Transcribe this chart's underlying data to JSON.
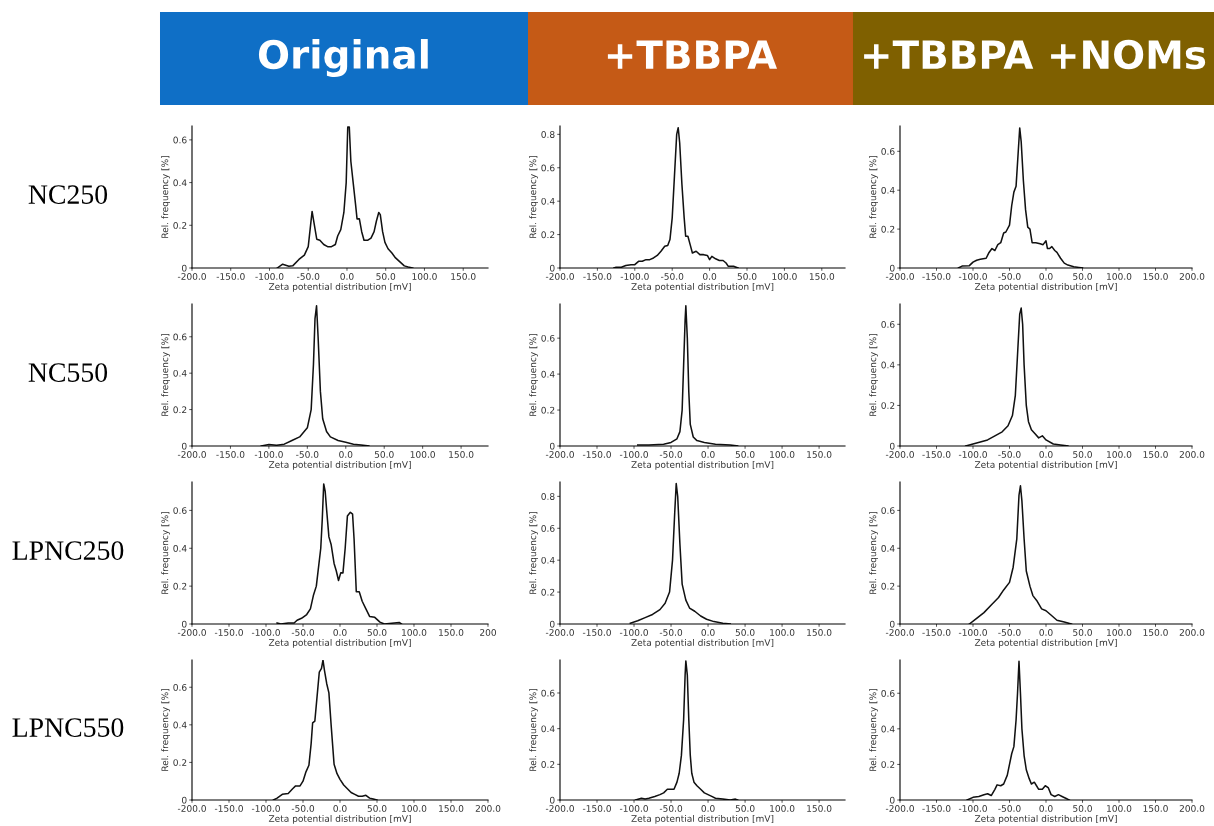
{
  "chart_data": [
    {
      "type": "line",
      "title": "Original",
      "annotations": [
        "NC250"
      ],
      "xlabel": "Zeta potential distribution [mV]",
      "ylabel": "Rel. frequency [%]",
      "xlim": [
        -200,
        182
      ],
      "ylim": [
        0,
        0.665
      ],
      "xticks": [
        {
          "value": -200,
          "label": "-200.0"
        },
        {
          "value": -150,
          "label": "-150.0"
        },
        {
          "value": -100,
          "label": "-100.0"
        },
        {
          "value": -50,
          "label": "-50.0"
        },
        {
          "value": 0,
          "label": "0.0"
        },
        {
          "value": 50,
          "label": "50.0"
        },
        {
          "value": 100,
          "label": "100.0"
        },
        {
          "value": 150,
          "label": "150.0"
        }
      ],
      "yticks": [
        0,
        0.2,
        0.4,
        0.6
      ],
      "color": "#111111",
      "x": [
        -90,
        -83,
        -75,
        -70,
        -62,
        -55,
        -50,
        -47,
        -45,
        -42,
        -39,
        -35,
        -30,
        -25,
        -20,
        -15,
        -12,
        -8,
        -4,
        -1,
        1,
        3,
        5,
        8,
        11,
        13,
        16,
        19,
        22,
        27,
        31,
        35,
        38,
        41,
        43,
        46,
        49,
        53,
        58,
        62,
        68,
        74,
        79,
        85
      ],
      "values": [
        0,
        0.018,
        0.008,
        0.01,
        0.04,
        0.06,
        0.1,
        0.2,
        0.265,
        0.2,
        0.135,
        0.13,
        0.11,
        0.1,
        0.1,
        0.11,
        0.15,
        0.18,
        0.26,
        0.4,
        0.66,
        0.66,
        0.5,
        0.4,
        0.3,
        0.23,
        0.23,
        0.17,
        0.13,
        0.13,
        0.14,
        0.17,
        0.22,
        0.26,
        0.25,
        0.17,
        0.12,
        0.09,
        0.07,
        0.05,
        0.03,
        0.01,
        0.005,
        0
      ]
    },
    {
      "type": "line",
      "title": "+TBBPA",
      "xlabel": "Zeta potential distribution [mV]",
      "ylabel": "Rel. frequency [%]",
      "xlim": [
        -200,
        181
      ],
      "ylim": [
        0,
        0.85
      ],
      "xticks": [
        {
          "value": -200,
          "label": "-200.0"
        },
        {
          "value": -150,
          "label": "-150.0"
        },
        {
          "value": -100,
          "label": "-100.0"
        },
        {
          "value": -50,
          "label": "-50.0"
        },
        {
          "value": 0,
          "label": "0.0"
        },
        {
          "value": 50,
          "label": "50.0"
        },
        {
          "value": 100,
          "label": "100.0"
        },
        {
          "value": 150,
          "label": "150.0"
        }
      ],
      "yticks": [
        0,
        0.2,
        0.4,
        0.6,
        0.8
      ],
      "color": "#111111",
      "x": [
        -128,
        -125,
        -118,
        -112,
        -105,
        -100,
        -95,
        -90,
        -85,
        -80,
        -75,
        -70,
        -65,
        -60,
        -56,
        -53,
        -50,
        -47,
        -44,
        -42,
        -40,
        -37,
        -34,
        -32,
        -29,
        -26,
        -23,
        -18,
        -13,
        -8,
        -3,
        0,
        3,
        8,
        13,
        18,
        22,
        25,
        32,
        38
      ],
      "values": [
        0,
        0.005,
        0.005,
        0.015,
        0.02,
        0.02,
        0.04,
        0.04,
        0.05,
        0.05,
        0.06,
        0.075,
        0.1,
        0.13,
        0.135,
        0.17,
        0.3,
        0.55,
        0.8,
        0.84,
        0.75,
        0.5,
        0.3,
        0.19,
        0.19,
        0.14,
        0.09,
        0.1,
        0.08,
        0.08,
        0.075,
        0.05,
        0.07,
        0.055,
        0.045,
        0.045,
        0.03,
        0.01,
        0.01,
        0
      ]
    },
    {
      "type": "line",
      "title": "+TBBPA +NOMs",
      "xlabel": "Zeta potential distribution [mV]",
      "ylabel": "Rel. frequency [%]",
      "xlim": [
        -200,
        200
      ],
      "ylim": [
        0,
        0.73
      ],
      "xticks": [
        {
          "value": -200,
          "label": "-200.0"
        },
        {
          "value": -150,
          "label": "-150.0"
        },
        {
          "value": -100,
          "label": "-100.0"
        },
        {
          "value": -50,
          "label": "-50.0"
        },
        {
          "value": 0,
          "label": "0.0"
        },
        {
          "value": 50,
          "label": "50.0"
        },
        {
          "value": 100,
          "label": "100.0"
        },
        {
          "value": 150,
          "label": "150.0"
        },
        {
          "value": 200,
          "label": "200.0"
        }
      ],
      "yticks": [
        0,
        0.2,
        0.4,
        0.6
      ],
      "color": "#111111",
      "x": [
        -120,
        -115,
        -105,
        -100,
        -95,
        -90,
        -82,
        -78,
        -74,
        -70,
        -66,
        -62,
        -58,
        -55,
        -50,
        -47,
        -44,
        -41,
        -38,
        -36,
        -34,
        -31,
        -28,
        -25,
        -22,
        -19,
        -14,
        -8,
        -4,
        0,
        2,
        5,
        8,
        12,
        15,
        20,
        25,
        30,
        38,
        45,
        50
      ],
      "values": [
        0,
        0.01,
        0.012,
        0.03,
        0.04,
        0.045,
        0.05,
        0.08,
        0.1,
        0.09,
        0.12,
        0.13,
        0.18,
        0.185,
        0.22,
        0.32,
        0.39,
        0.42,
        0.6,
        0.72,
        0.65,
        0.45,
        0.3,
        0.21,
        0.2,
        0.13,
        0.13,
        0.125,
        0.12,
        0.14,
        0.1,
        0.1,
        0.11,
        0.09,
        0.08,
        0.05,
        0.025,
        0.015,
        0.007,
        0.003,
        0
      ]
    },
    {
      "type": "line",
      "annotations": [
        "NC550"
      ],
      "xlabel": "Zeta potential distribution [mV]",
      "ylabel": "Rel. frequency [%]",
      "xlim": [
        -200,
        185
      ],
      "ylim": [
        0,
        0.78
      ],
      "xticks": [
        {
          "value": -200,
          "label": "-200.0"
        },
        {
          "value": -150,
          "label": "-150.0"
        },
        {
          "value": -100,
          "label": "-100.0"
        },
        {
          "value": -50,
          "label": "-50.0"
        },
        {
          "value": 0,
          "label": "0.0"
        },
        {
          "value": 50,
          "label": "50.0"
        },
        {
          "value": 100,
          "label": "100.0"
        },
        {
          "value": 150,
          "label": "150.0"
        }
      ],
      "yticks": [
        0,
        0.2,
        0.4,
        0.6
      ],
      "color": "#111111",
      "x": [
        -110,
        -100,
        -90,
        -80,
        -70,
        -60,
        -50,
        -45,
        -42,
        -40,
        -38,
        -36,
        -33,
        -30,
        -25,
        -20,
        -10,
        0,
        10,
        20,
        30
      ],
      "values": [
        0,
        0.008,
        0.004,
        0.01,
        0.03,
        0.05,
        0.1,
        0.2,
        0.45,
        0.7,
        0.77,
        0.6,
        0.3,
        0.15,
        0.08,
        0.05,
        0.03,
        0.02,
        0.01,
        0.005,
        0
      ]
    },
    {
      "type": "line",
      "xlabel": "Zeta potential distribution [mV]",
      "ylabel": "Rel. frequency [%]",
      "xlim": [
        -200,
        185
      ],
      "ylim": [
        0,
        0.79
      ],
      "xticks": [
        {
          "value": -200,
          "label": "-200.0"
        },
        {
          "value": -150,
          "label": "-150.0"
        },
        {
          "value": -100,
          "label": "-100.0"
        },
        {
          "value": -50,
          "label": "-50.0"
        },
        {
          "value": 0,
          "label": "0.0"
        },
        {
          "value": 50,
          "label": "50.0"
        },
        {
          "value": 100,
          "label": "100.0"
        },
        {
          "value": 150,
          "label": "150.0"
        }
      ],
      "yticks": [
        0,
        0.2,
        0.4,
        0.6
      ],
      "color": "#111111",
      "x": [
        -95,
        -80,
        -60,
        -50,
        -42,
        -38,
        -35,
        -33,
        -31,
        -30,
        -28,
        -26,
        -24,
        -20,
        -15,
        -5,
        10,
        30,
        40
      ],
      "values": [
        0.005,
        0.005,
        0.01,
        0.02,
        0.04,
        0.08,
        0.2,
        0.45,
        0.7,
        0.78,
        0.6,
        0.3,
        0.12,
        0.05,
        0.03,
        0.02,
        0.01,
        0.005,
        0
      ]
    },
    {
      "type": "line",
      "xlabel": "Zeta potential distribution [mV]",
      "ylabel": "Rel. frequency [%]",
      "xlim": [
        -200,
        200
      ],
      "ylim": [
        0,
        0.7
      ],
      "xticks": [
        {
          "value": -200,
          "label": "-200.0"
        },
        {
          "value": -150,
          "label": "-150.0"
        },
        {
          "value": -100,
          "label": "-100.0"
        },
        {
          "value": -50,
          "label": "-50.0"
        },
        {
          "value": 0,
          "label": "0.0"
        },
        {
          "value": 50,
          "label": "50.0"
        },
        {
          "value": 100,
          "label": "100.0"
        },
        {
          "value": 150,
          "label": "150.0"
        },
        {
          "value": 200,
          "label": "200.0"
        }
      ],
      "yticks": [
        0,
        0.2,
        0.4,
        0.6
      ],
      "color": "#111111",
      "x": [
        -110,
        -100,
        -90,
        -80,
        -70,
        -60,
        -52,
        -46,
        -42,
        -39,
        -36,
        -34,
        -32,
        -30,
        -27,
        -24,
        -20,
        -15,
        -10,
        -5,
        0,
        10,
        20,
        30
      ],
      "values": [
        0,
        0.01,
        0.02,
        0.03,
        0.05,
        0.07,
        0.1,
        0.15,
        0.25,
        0.45,
        0.65,
        0.68,
        0.6,
        0.4,
        0.2,
        0.12,
        0.08,
        0.06,
        0.04,
        0.05,
        0.03,
        0.01,
        0.005,
        0
      ]
    },
    {
      "type": "line",
      "annotations": [
        "LPNC250"
      ],
      "xlabel": "Zeta potential distribution [mV]",
      "ylabel": "Rel. frequency [%]",
      "xlim": [
        -200,
        200
      ],
      "ylim": [
        0,
        0.75
      ],
      "xticks": [
        {
          "value": -200,
          "label": "-200.0"
        },
        {
          "value": -150,
          "label": "-150.0"
        },
        {
          "value": -100,
          "label": "-100.0"
        },
        {
          "value": -50,
          "label": "-50.0"
        },
        {
          "value": 0,
          "label": "0.0"
        },
        {
          "value": 50,
          "label": "50.0"
        },
        {
          "value": 100,
          "label": "100.0"
        },
        {
          "value": 150,
          "label": "150.0"
        },
        {
          "value": 200,
          "label": "200"
        }
      ],
      "yticks": [
        0,
        0.2,
        0.4,
        0.6
      ],
      "color": "#111111",
      "x": [
        -85,
        -80,
        -70,
        -62,
        -58,
        -52,
        -45,
        -40,
        -36,
        -32,
        -29,
        -26,
        -24,
        -22,
        -20,
        -18,
        -15,
        -12,
        -8,
        -5,
        -2,
        1,
        4,
        7,
        10,
        14,
        17,
        19,
        22,
        26,
        30,
        35,
        40,
        47,
        54,
        60,
        80,
        83
      ],
      "values": [
        0.005,
        0,
        0.005,
        0.005,
        0.02,
        0.03,
        0.05,
        0.08,
        0.15,
        0.2,
        0.3,
        0.4,
        0.55,
        0.74,
        0.7,
        0.6,
        0.46,
        0.42,
        0.32,
        0.28,
        0.23,
        0.27,
        0.27,
        0.4,
        0.57,
        0.59,
        0.58,
        0.45,
        0.17,
        0.17,
        0.12,
        0.08,
        0.04,
        0.035,
        0.01,
        0,
        0.008,
        0
      ]
    },
    {
      "type": "line",
      "xlabel": "Zeta potential distribution [mV]",
      "ylabel": "Rel. frequency [%]",
      "xlim": [
        -200,
        185
      ],
      "ylim": [
        0,
        0.89
      ],
      "xticks": [
        {
          "value": -200,
          "label": "-200.0"
        },
        {
          "value": -150,
          "label": "-150.0"
        },
        {
          "value": -100,
          "label": "-100.0"
        },
        {
          "value": -50,
          "label": "-50.0"
        },
        {
          "value": 0,
          "label": "0.0"
        },
        {
          "value": 50,
          "label": "50.0"
        },
        {
          "value": 100,
          "label": "100.0"
        },
        {
          "value": 150,
          "label": "150.0"
        }
      ],
      "yticks": [
        0,
        0.2,
        0.4,
        0.6,
        0.8
      ],
      "color": "#111111",
      "x": [
        -105,
        -95,
        -85,
        -75,
        -65,
        -58,
        -52,
        -48,
        -45,
        -43,
        -41,
        -38,
        -35,
        -30,
        -25,
        -18,
        -10,
        -2,
        8,
        20,
        30
      ],
      "values": [
        0.005,
        0.02,
        0.04,
        0.06,
        0.09,
        0.13,
        0.2,
        0.4,
        0.7,
        0.88,
        0.8,
        0.5,
        0.25,
        0.15,
        0.1,
        0.08,
        0.05,
        0.03,
        0.015,
        0.005,
        0
      ]
    },
    {
      "type": "line",
      "xlabel": "Zeta potential distribution [mV]",
      "ylabel": "Rel. frequency [%]",
      "xlim": [
        -200,
        200
      ],
      "ylim": [
        0,
        0.75
      ],
      "xticks": [
        {
          "value": -200,
          "label": "-200.0"
        },
        {
          "value": -150,
          "label": "-150.0"
        },
        {
          "value": -100,
          "label": "-100.0"
        },
        {
          "value": -50,
          "label": "-50.0"
        },
        {
          "value": 0,
          "label": "0.0"
        },
        {
          "value": 50,
          "label": "50.0"
        },
        {
          "value": 100,
          "label": "100.0"
        },
        {
          "value": 150,
          "label": "150.0"
        },
        {
          "value": 200,
          "label": "200.0"
        }
      ],
      "yticks": [
        0,
        0.2,
        0.4,
        0.6
      ],
      "color": "#111111",
      "x": [
        -105,
        -95,
        -85,
        -75,
        -65,
        -58,
        -50,
        -45,
        -40,
        -37,
        -35,
        -33,
        -30,
        -27,
        -22,
        -18,
        -12,
        -6,
        0,
        6,
        15,
        25,
        35
      ],
      "values": [
        0,
        0.03,
        0.06,
        0.1,
        0.14,
        0.18,
        0.22,
        0.3,
        0.45,
        0.68,
        0.73,
        0.65,
        0.45,
        0.28,
        0.2,
        0.15,
        0.12,
        0.08,
        0.07,
        0.05,
        0.02,
        0.01,
        0
      ]
    },
    {
      "type": "line",
      "annotations": [
        "LPNC550"
      ],
      "xlabel": "Zeta potential distribution [mV]",
      "ylabel": "Rel. frequency [%]",
      "xlim": [
        -200,
        200
      ],
      "ylim": [
        0,
        0.745
      ],
      "xticks": [
        {
          "value": -200,
          "label": "-200.0"
        },
        {
          "value": -150,
          "label": "-150.0"
        },
        {
          "value": -100,
          "label": "-100.0"
        },
        {
          "value": -50,
          "label": "-50.0"
        },
        {
          "value": 0,
          "label": "0.0"
        },
        {
          "value": 50,
          "label": "50.0"
        },
        {
          "value": 100,
          "label": "100.0"
        },
        {
          "value": 150,
          "label": "150.0"
        },
        {
          "value": 200,
          "label": "200.0"
        }
      ],
      "yticks": [
        0,
        0.2,
        0.4,
        0.6
      ],
      "color": "#111111",
      "x": [
        -90,
        -85,
        -78,
        -70,
        -64,
        -60,
        -54,
        -50,
        -46,
        -42,
        -39,
        -37,
        -34,
        -31,
        -28,
        -25,
        -23,
        -21,
        -18,
        -15,
        -12,
        -8,
        -4,
        0,
        5,
        10,
        15,
        20,
        25,
        30,
        35,
        40,
        45,
        50
      ],
      "values": [
        0,
        0.01,
        0.03,
        0.035,
        0.06,
        0.075,
        0.075,
        0.1,
        0.15,
        0.185,
        0.3,
        0.41,
        0.42,
        0.55,
        0.68,
        0.7,
        0.745,
        0.69,
        0.62,
        0.57,
        0.4,
        0.19,
        0.14,
        0.11,
        0.08,
        0.06,
        0.04,
        0.03,
        0.02,
        0.02,
        0.025,
        0.01,
        0.005,
        0
      ]
    },
    {
      "type": "line",
      "xlabel": "Zeta potential distribution [mV]",
      "ylabel": "Rel. frequency [%]",
      "xlim": [
        -200,
        185
      ],
      "ylim": [
        0,
        0.785
      ],
      "xticks": [
        {
          "value": -200,
          "label": "-200.0"
        },
        {
          "value": -150,
          "label": "-150.0"
        },
        {
          "value": -100,
          "label": "-100.0"
        },
        {
          "value": -50,
          "label": "-50.0"
        },
        {
          "value": 0,
          "label": "0.0"
        },
        {
          "value": 50,
          "label": "50.0"
        },
        {
          "value": 100,
          "label": "100.0"
        },
        {
          "value": 150,
          "label": "150.0"
        }
      ],
      "yticks": [
        0,
        0.2,
        0.4,
        0.6
      ],
      "color": "#111111",
      "x": [
        -98,
        -90,
        -85,
        -80,
        -72,
        -65,
        -60,
        -55,
        -50,
        -46,
        -42,
        -39,
        -36,
        -33,
        -31,
        -30,
        -28,
        -26,
        -24,
        -22,
        -19,
        -15,
        -10,
        -5,
        0,
        5,
        10,
        20,
        30,
        37,
        40
      ],
      "values": [
        0,
        0.01,
        0.005,
        0.01,
        0.02,
        0.03,
        0.04,
        0.06,
        0.06,
        0.06,
        0.1,
        0.15,
        0.25,
        0.45,
        0.7,
        0.78,
        0.7,
        0.45,
        0.25,
        0.15,
        0.1,
        0.08,
        0.06,
        0.04,
        0.03,
        0.02,
        0.01,
        0.005,
        0,
        0.005,
        0
      ]
    },
    {
      "type": "line",
      "xlabel": "Zeta potential distribution [mV]",
      "ylabel": "Rel. frequency [%]",
      "xlim": [
        -200,
        200
      ],
      "ylim": [
        0,
        0.787
      ],
      "xticks": [
        {
          "value": -200,
          "label": "-200.0"
        },
        {
          "value": -150,
          "label": "-150.0"
        },
        {
          "value": -100,
          "label": "-100.0"
        },
        {
          "value": -50,
          "label": "-50.0"
        },
        {
          "value": 0,
          "label": "0.0"
        },
        {
          "value": 50,
          "label": "50.0"
        },
        {
          "value": 100,
          "label": "100.0"
        },
        {
          "value": 150,
          "label": "150.0"
        },
        {
          "value": 200,
          "label": "200.0"
        }
      ],
      "yticks": [
        0,
        0.2,
        0.4,
        0.6
      ],
      "color": "#111111",
      "x": [
        -108,
        -100,
        -92,
        -85,
        -80,
        -75,
        -70,
        -67,
        -62,
        -58,
        -53,
        -50,
        -47,
        -44,
        -41,
        -39,
        -37,
        -35,
        -33,
        -30,
        -27,
        -23,
        -20,
        -16,
        -13,
        -10,
        -5,
        -1,
        3,
        7,
        12,
        17,
        22,
        27,
        32
      ],
      "values": [
        0,
        0.015,
        0.02,
        0.03,
        0.035,
        0.025,
        0.06,
        0.085,
        0.08,
        0.09,
        0.14,
        0.2,
        0.26,
        0.3,
        0.45,
        0.6,
        0.78,
        0.6,
        0.4,
        0.25,
        0.17,
        0.12,
        0.09,
        0.1,
        0.08,
        0.06,
        0.06,
        0.08,
        0.07,
        0.03,
        0.02,
        0.03,
        0.02,
        0.01,
        0
      ]
    }
  ]
}
